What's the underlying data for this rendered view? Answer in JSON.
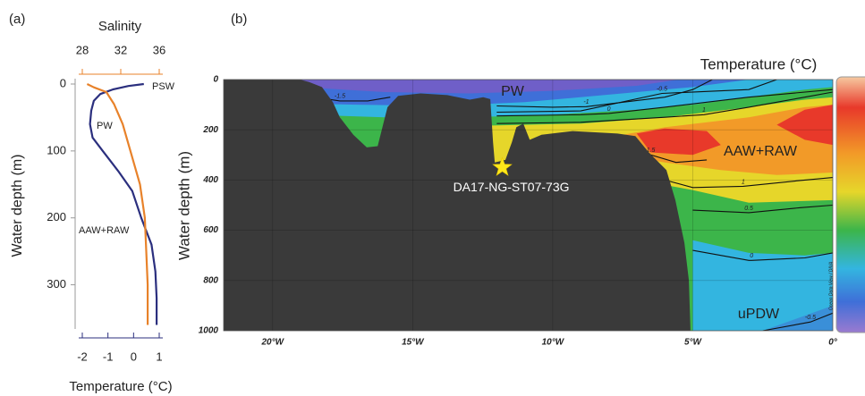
{
  "chart_data": [
    {
      "type": "profile",
      "panel_label": "(a)",
      "x_label": "Temperature (°C)",
      "x2_label": "Salinity",
      "y_label": "Water depth (m)",
      "xlim": [
        -2,
        1
      ],
      "xticks": [
        -2,
        -1,
        0,
        1
      ],
      "x2lim": [
        28,
        36
      ],
      "x2ticks": [
        28,
        32,
        36
      ],
      "ylim": [
        0,
        362
      ],
      "yticks": [
        0,
        100,
        200,
        300
      ],
      "y_reversed": true,
      "series": [
        {
          "color": "#2b2f7e",
          "axis": "x",
          "depth": [
            0,
            3,
            8,
            15,
            25,
            40,
            60,
            80,
            100,
            130,
            160,
            200,
            240,
            280,
            320,
            360
          ],
          "values": [
            0.4,
            -0.2,
            -0.8,
            -1.3,
            -1.55,
            -1.65,
            -1.7,
            -1.6,
            -1.2,
            -0.6,
            -0.05,
            0.3,
            0.7,
            0.85,
            0.9,
            0.9
          ]
        },
        {
          "color": "#e8822a",
          "axis": "x2",
          "depth": [
            0,
            5,
            12,
            30,
            60,
            100,
            150,
            200,
            300,
            360
          ],
          "values": [
            28.5,
            29.2,
            30.5,
            31.3,
            32.2,
            33,
            34,
            34.5,
            34.8,
            34.8
          ]
        }
      ],
      "annotations": [
        "PSW",
        "PW",
        "AAW+RAW"
      ]
    },
    {
      "type": "section",
      "panel_label": "(b)",
      "y_label": "Water depth (m)",
      "colorbar_label": "Temperature (°C)",
      "credit": "Ocean Data View / DIVA",
      "xlim": [
        -21.75,
        0
      ],
      "xticks": [
        {
          "value": -20,
          "label": "20°W"
        },
        {
          "value": -15,
          "label": "15°W"
        },
        {
          "value": -10,
          "label": "10°W"
        },
        {
          "value": -5,
          "label": "5°W"
        },
        {
          "value": 0,
          "label": "0°"
        }
      ],
      "ylim": [
        0,
        1000
      ],
      "yticks": [
        0,
        200,
        400,
        600,
        800,
        1000
      ],
      "y_reversed": true,
      "grid": true,
      "base_color": "#3cb54a",
      "fills": [
        {
          "color": "#e6d62a",
          "lon": [
            -13,
            -9,
            -6,
            -3,
            -1,
            0,
            0,
            -3,
            -5,
            -7,
            -10,
            -13
          ],
          "depth": [
            185,
            175,
            150,
            110,
            80,
            70,
            480,
            490,
            440,
            400,
            360,
            320
          ]
        },
        {
          "color": "#f29a28",
          "lon": [
            -8,
            -6,
            -3,
            -1,
            0,
            0,
            -2,
            -4,
            -6,
            -8
          ],
          "depth": [
            230,
            190,
            150,
            110,
            100,
            370,
            380,
            360,
            330,
            290
          ]
        },
        {
          "color": "#e8392a",
          "lon": [
            -7,
            -6,
            -4.5,
            -4,
            -5,
            -6.5
          ],
          "depth": [
            215,
            195,
            205,
            260,
            300,
            290
          ]
        },
        {
          "color": "#e8392a",
          "lon": [
            -2,
            -1,
            0,
            0,
            -1
          ],
          "depth": [
            180,
            120,
            100,
            260,
            240
          ]
        },
        {
          "color": "#33b5e0",
          "lon": [
            -21.75,
            0,
            0,
            -1,
            -3,
            -5,
            -7,
            -10,
            -13,
            -16,
            -21.75
          ],
          "depth": [
            0,
            0,
            30,
            40,
            70,
            100,
            120,
            140,
            150,
            150,
            130
          ]
        },
        {
          "color": "#3f6fd8",
          "lon": [
            -21.75,
            -3,
            -5,
            -8,
            -11,
            -14,
            -17,
            -21.75
          ],
          "depth": [
            0,
            0,
            30,
            60,
            90,
            105,
            100,
            90
          ]
        },
        {
          "color": "#6f5fc8",
          "lon": [
            -19,
            -5.5,
            -7,
            -10,
            -13,
            -16,
            -19
          ],
          "depth": [
            0,
            0,
            25,
            45,
            55,
            50,
            30
          ]
        },
        {
          "color": "#33b5e0",
          "lon": [
            -5,
            -3,
            -1,
            0,
            0,
            -5
          ],
          "depth": [
            640,
            690,
            700,
            690,
            1000,
            1000
          ]
        },
        {
          "color": "#3a8fd8",
          "lon": [
            -2.5,
            -1,
            0,
            0
          ],
          "depth": [
            1000,
            940,
            900,
            1000
          ]
        }
      ],
      "contours": [
        {
          "level": -1.5,
          "lon": [
            -18.5,
            -17.6,
            -16.6,
            -15.8
          ],
          "depth": [
            70,
            85,
            85,
            70
          ]
        },
        {
          "level": -1,
          "lon": [
            -12,
            -10,
            -8.8,
            -6,
            -5,
            -4.3
          ],
          "depth": [
            105,
            110,
            108,
            70,
            40,
            0
          ]
        },
        {
          "level": -0.5,
          "lon": [
            -12,
            -9,
            -6.1,
            -3,
            -2
          ],
          "depth": [
            130,
            125,
            55,
            40,
            0
          ]
        },
        {
          "level": 0,
          "lon": [
            -12,
            -9,
            -8,
            -6,
            -3,
            0
          ],
          "depth": [
            145,
            140,
            135,
            110,
            70,
            40
          ]
        },
        {
          "level": 1,
          "lon": [
            -12,
            -9,
            -6,
            -4.6,
            -3,
            -1,
            0
          ],
          "depth": [
            175,
            170,
            150,
            140,
            110,
            70,
            50
          ]
        },
        {
          "level": 1.5,
          "lon": [
            -7.2,
            -6.5,
            -5.6,
            -4.5
          ],
          "depth": [
            240,
            300,
            330,
            320
          ]
        },
        {
          "level": 1,
          "lon": [
            -6,
            -5,
            -3.2,
            -1,
            0
          ],
          "depth": [
            400,
            430,
            425,
            400,
            390
          ]
        },
        {
          "level": 0.5,
          "lon": [
            -5,
            -3,
            -1.15,
            0
          ],
          "depth": [
            520,
            530,
            510,
            500
          ]
        },
        {
          "level": 0,
          "lon": [
            -5,
            -3,
            -2.9,
            -1,
            0
          ],
          "depth": [
            680,
            720,
            720,
            710,
            690
          ]
        },
        {
          "level": -0.5,
          "lon": [
            -2.5,
            -0.8,
            0
          ],
          "depth": [
            1000,
            965,
            930
          ]
        }
      ],
      "bathymetry": {
        "color": "#3a3a3a",
        "lon": [
          -21.75,
          -19.03,
          -18.7,
          -18.24,
          -17.85,
          -17.6,
          -17.12,
          -16.64,
          -16.25,
          -16.06,
          -15.9,
          -15.52,
          -14.72,
          -13.76,
          -12.96,
          -12.48,
          -12.23,
          -12.13,
          -12.07,
          -11.69,
          -11.46,
          -11.3,
          -11.05,
          -10.82,
          -10.4,
          -9.29,
          -7.69,
          -7.05,
          -6.57,
          -5.94,
          -5.62,
          -5.3,
          -5.14,
          -5.08
        ],
        "depth": [
          0,
          0,
          10,
          30,
          90,
          150,
          220,
          270,
          265,
          180,
          110,
          65,
          55,
          62,
          80,
          70,
          78,
          250,
          330,
          320,
          250,
          190,
          175,
          240,
          220,
          205,
          215,
          225,
          290,
          360,
          480,
          650,
          800,
          1000
        ]
      },
      "station": {
        "label": "DA17-NG-ST07-73G",
        "lon": -11.8,
        "depth": 350
      },
      "annotations": [
        "PW",
        "AAW+RAW",
        "uPDW"
      ]
    }
  ]
}
